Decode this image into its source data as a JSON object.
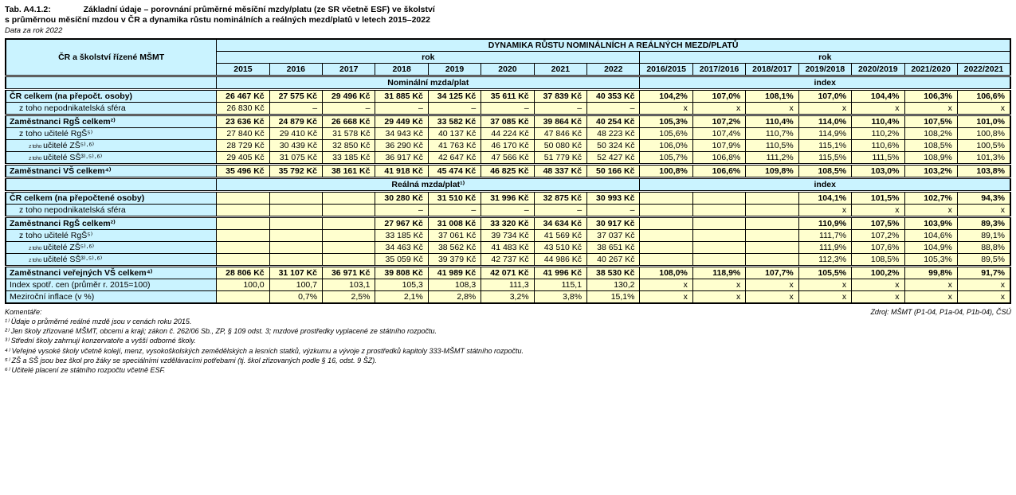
{
  "title": {
    "code": "Tab. A4.1.2:",
    "main": "Základní údaje – porovnání průměrné měsíční mzdy/platu (ze SR včetně ESF) ve školství",
    "sub": "s průměrnou měsíční mzdou v ČR a dynamika růstu nominálních a reálných mezd/platů v letech 2015–2022",
    "data_note": "Data za rok 2022"
  },
  "headers": {
    "left": "ČR a školství řízené MŠMT",
    "right": "DYNAMIKA RŮSTU NOMINÁLNÍCH A REÁLNÝCH MEZD/PLATŮ",
    "rok": "rok",
    "years": [
      "2015",
      "2016",
      "2017",
      "2018",
      "2019",
      "2020",
      "2021",
      "2022"
    ],
    "pairs": [
      "2016/2015",
      "2017/2016",
      "2018/2017",
      "2019/2018",
      "2020/2019",
      "2021/2020",
      "2022/2021"
    ]
  },
  "section_nominal": {
    "left": "Nominální mzda/plat",
    "right": "index"
  },
  "section_real": {
    "left": "Reálná mzda/plat¹⁾",
    "right": "index"
  },
  "rowlabels": {
    "cr_celkem": "ČR celkem (na přepočt. osoby)",
    "cr_celkem2": "ČR celkem (na přepočtené osoby)",
    "nepod": "z toho nepodnikatelská sféra",
    "rgs": "Zaměstnanci RgŠ celkem²⁾",
    "uc_rgs": "z toho učitelé RgŠ⁵⁾",
    "uc_zs": "učitelé ZŠ⁵⁾·⁶⁾",
    "uc_ss": "učitelé SŠ³⁾·⁵⁾·⁶⁾",
    "vs": "Zaměstnanci VŠ celkem⁴⁾",
    "vvs": "Zaměstnanci veřejných VŠ celkem⁴⁾",
    "cpi": "Index spotř. cen (průměr r. 2015=100)",
    "infl": "Meziroční inflace (v %)"
  },
  "nominal": {
    "cr_celkem": {
      "v": [
        "26 467 Kč",
        "27 575 Kč",
        "29 496 Kč",
        "31 885 Kč",
        "34 125 Kč",
        "35 611 Kč",
        "37 839 Kč",
        "40 353 Kč"
      ],
      "i": [
        "104,2%",
        "107,0%",
        "108,1%",
        "107,0%",
        "104,4%",
        "106,3%",
        "106,6%"
      ],
      "bold": true
    },
    "nepod": {
      "v": [
        "26 830 Kč",
        "–",
        "–",
        "–",
        "–",
        "–",
        "–",
        "–"
      ],
      "i": [
        "x",
        "x",
        "x",
        "x",
        "x",
        "x",
        "x"
      ]
    },
    "rgs": {
      "v": [
        "23 636 Kč",
        "24 879 Kč",
        "26 668 Kč",
        "29 449 Kč",
        "33 582 Kč",
        "37 085 Kč",
        "39 864 Kč",
        "40 254 Kč"
      ],
      "i": [
        "105,3%",
        "107,2%",
        "110,4%",
        "114,0%",
        "110,4%",
        "107,5%",
        "101,0%"
      ],
      "bold": true
    },
    "uc_rgs": {
      "v": [
        "27 840 Kč",
        "29 410 Kč",
        "31 578 Kč",
        "34 943 Kč",
        "40 137 Kč",
        "44 224 Kč",
        "47 846 Kč",
        "48 223 Kč"
      ],
      "i": [
        "105,6%",
        "107,4%",
        "110,7%",
        "114,9%",
        "110,2%",
        "108,2%",
        "100,8%"
      ]
    },
    "uc_zs": {
      "v": [
        "28 729 Kč",
        "30 439 Kč",
        "32 850 Kč",
        "36 290 Kč",
        "41 763 Kč",
        "46 170 Kč",
        "50 080 Kč",
        "50 324 Kč"
      ],
      "i": [
        "106,0%",
        "107,9%",
        "110,5%",
        "115,1%",
        "110,6%",
        "108,5%",
        "100,5%"
      ]
    },
    "uc_ss": {
      "v": [
        "29 405 Kč",
        "31 075 Kč",
        "33 185 Kč",
        "36 917 Kč",
        "42 647 Kč",
        "47 566 Kč",
        "51 779 Kč",
        "52 427 Kč"
      ],
      "i": [
        "105,7%",
        "106,8%",
        "111,2%",
        "115,5%",
        "111,5%",
        "108,9%",
        "101,3%"
      ]
    },
    "vs": {
      "v": [
        "35 496 Kč",
        "35 792 Kč",
        "38 161 Kč",
        "41 918 Kč",
        "45 474 Kč",
        "46 825 Kč",
        "48 337 Kč",
        "50 166 Kč"
      ],
      "i": [
        "100,8%",
        "106,6%",
        "109,8%",
        "108,5%",
        "103,0%",
        "103,2%",
        "103,8%"
      ],
      "bold": true
    }
  },
  "real": {
    "cr_celkem": {
      "v": [
        "",
        "",
        "",
        "30 280 Kč",
        "31 510 Kč",
        "31 996 Kč",
        "32 875 Kč",
        "30 993 Kč"
      ],
      "i": [
        "",
        "",
        "",
        "104,1%",
        "101,5%",
        "102,7%",
        "94,3%"
      ],
      "bold": true
    },
    "nepod": {
      "v": [
        "",
        "",
        "",
        "–",
        "–",
        "–",
        "–",
        "–"
      ],
      "i": [
        "",
        "",
        "",
        "x",
        "x",
        "x",
        "x"
      ]
    },
    "rgs": {
      "v": [
        "",
        "",
        "",
        "27 967 Kč",
        "31 008 Kč",
        "33 320 Kč",
        "34 634 Kč",
        "30 917 Kč"
      ],
      "i": [
        "",
        "",
        "",
        "110,9%",
        "107,5%",
        "103,9%",
        "89,3%"
      ],
      "bold": true
    },
    "uc_rgs": {
      "v": [
        "",
        "",
        "",
        "33 185 Kč",
        "37 061 Kč",
        "39 734 Kč",
        "41 569 Kč",
        "37 037 Kč"
      ],
      "i": [
        "",
        "",
        "",
        "111,7%",
        "107,2%",
        "104,6%",
        "89,1%"
      ]
    },
    "uc_zs": {
      "v": [
        "",
        "",
        "",
        "34 463 Kč",
        "38 562 Kč",
        "41 483 Kč",
        "43 510 Kč",
        "38 651 Kč"
      ],
      "i": [
        "",
        "",
        "",
        "111,9%",
        "107,6%",
        "104,9%",
        "88,8%"
      ]
    },
    "uc_ss": {
      "v": [
        "",
        "",
        "",
        "35 059 Kč",
        "39 379 Kč",
        "42 737 Kč",
        "44 986 Kč",
        "40 267 Kč"
      ],
      "i": [
        "",
        "",
        "",
        "112,3%",
        "108,5%",
        "105,3%",
        "89,5%"
      ]
    },
    "vvs": {
      "v": [
        "28 806 Kč",
        "31 107 Kč",
        "36 971 Kč",
        "39 808 Kč",
        "41 989 Kč",
        "42 071 Kč",
        "41 996 Kč",
        "38 530 Kč"
      ],
      "i": [
        "108,0%",
        "118,9%",
        "107,7%",
        "105,5%",
        "100,2%",
        "99,8%",
        "91,7%"
      ],
      "bold": true
    },
    "cpi": {
      "v": [
        "100,0",
        "100,7",
        "103,1",
        "105,3",
        "108,3",
        "111,3",
        "115,1",
        "130,2"
      ],
      "i": [
        "x",
        "x",
        "x",
        "x",
        "x",
        "x",
        "x"
      ]
    },
    "infl": {
      "v": [
        "",
        "0,7%",
        "2,5%",
        "2,1%",
        "2,8%",
        "3,2%",
        "3,8%",
        "15,1%"
      ],
      "i": [
        "x",
        "x",
        "x",
        "x",
        "x",
        "x",
        "x"
      ]
    }
  },
  "footer": {
    "kom": "Komentáře:",
    "src": "Zdroj: MŠMT (P1-04, P1a-04, P1b-04), ČSÚ",
    "n1": "¹⁾ Údaje o průměrné reálné mzdě jsou v cenách roku 2015.",
    "n2": "²⁾ Jen školy zřizované MŠMT, obcemi a kraji; zákon č. 262/06 Sb., ZP, § 109 odst. 3; mzdové prostředky vyplacené ze státního rozpočtu.",
    "n3": "³⁾ Střední školy zahrnují konzervatoře a vyšší odborné školy.",
    "n4": "⁴⁾ Veřejné vysoké školy včetně kolejí, menz, vysokoškolských zemědělských a lesních statků, výzkumu a vývoje z prostředků kapitoly 333-MŠMT státního rozpočtu.",
    "n5": "⁵⁾ ZŠ a SŠ jsou bez škol pro žáky se speciálními vzdělávacími potřebami (tj. škol zřizovaných podle § 16, odst. 9 ŠZ).",
    "n6": "⁶⁾ Učitelé placení ze státního rozpočtu včetně ESF."
  }
}
